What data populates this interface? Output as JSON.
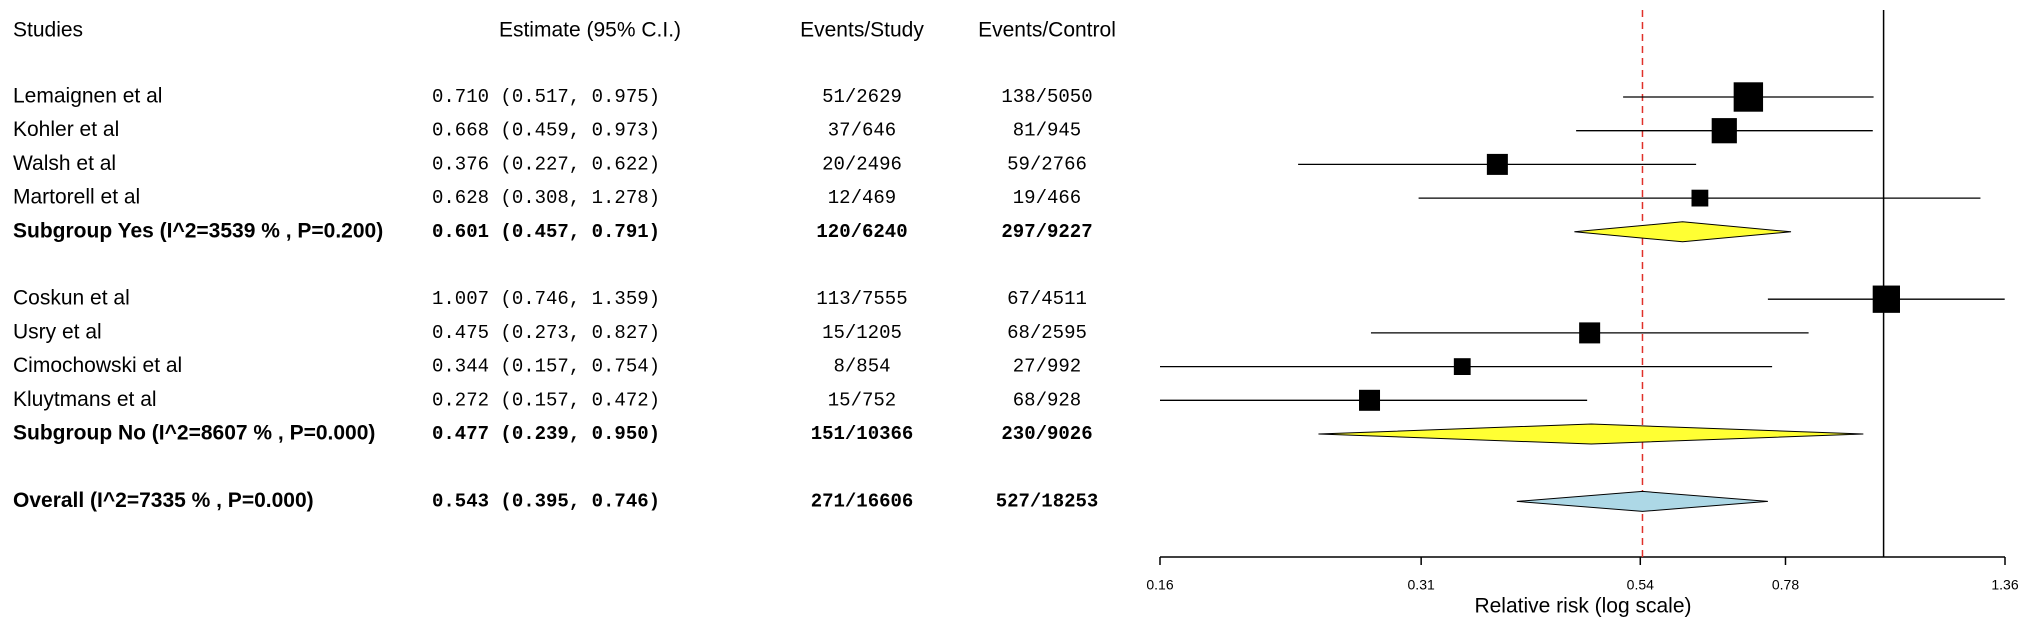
{
  "chart_data": {
    "type": "forest",
    "headers": {
      "study": "Studies",
      "estimate": "Estimate (95% C.I.)",
      "events_study": "Events/Study",
      "events_control": "Events/Control"
    },
    "x_label": "Relative risk (log scale)",
    "log_scale": true,
    "xlim": [
      0.16,
      1.36
    ],
    "xticks": [
      0.16,
      0.31,
      0.54,
      0.78,
      1.36
    ],
    "null_line": 1,
    "square_color": "#000000",
    "rows": [
      {
        "kind": "study",
        "study": "Lemaignen et al",
        "estimate": 0.71,
        "lower": 0.517,
        "upper": 0.975,
        "estimate_label": "0.710 (0.517, 0.975)",
        "events_study": "51/2629",
        "events_control": "138/5050",
        "weight": 14
      },
      {
        "kind": "study",
        "study": "Kohler et al",
        "estimate": 0.668,
        "lower": 0.459,
        "upper": 0.973,
        "estimate_label": "0.668 (0.459, 0.973)",
        "events_study": "37/646",
        "events_control": "81/945",
        "weight": 12
      },
      {
        "kind": "study",
        "study": "Walsh et al",
        "estimate": 0.376,
        "lower": 0.227,
        "upper": 0.622,
        "estimate_label": "0.376 (0.227, 0.622)",
        "events_study": "20/2496",
        "events_control": "59/2766",
        "weight": 10
      },
      {
        "kind": "study",
        "study": "Martorell et al",
        "estimate": 0.628,
        "lower": 0.308,
        "upper": 1.278,
        "estimate_label": "0.628 (0.308, 1.278)",
        "events_study": "12/469",
        "events_control": "19/466",
        "weight": 8
      },
      {
        "kind": "subgroup",
        "study": "Subgroup Yes (I^2=3539 % , P=0.200)",
        "estimate": 0.601,
        "lower": 0.457,
        "upper": 0.791,
        "estimate_label": "0.601 (0.457, 0.791)",
        "events_study": "120/6240",
        "events_control": "297/9227",
        "color": "#ffff33"
      },
      {
        "kind": "study",
        "study": "Coskun et al",
        "estimate": 1.007,
        "lower": 0.746,
        "upper": 1.359,
        "estimate_label": "1.007 (0.746, 1.359)",
        "events_study": "113/7555",
        "events_control": "67/4511",
        "weight": 13
      },
      {
        "kind": "study",
        "study": "Usry et al",
        "estimate": 0.475,
        "lower": 0.273,
        "upper": 0.827,
        "estimate_label": "0.475 (0.273, 0.827)",
        "events_study": "15/1205",
        "events_control": "68/2595",
        "weight": 10
      },
      {
        "kind": "study",
        "study": "Cimochowski et al",
        "estimate": 0.344,
        "lower": 0.157,
        "upper": 0.754,
        "estimate_label": "0.344 (0.157, 0.754)",
        "events_study": "8/854",
        "events_control": "27/992",
        "weight": 8
      },
      {
        "kind": "study",
        "study": "Kluytmans et al",
        "estimate": 0.272,
        "lower": 0.157,
        "upper": 0.472,
        "estimate_label": "0.272 (0.157, 0.472)",
        "events_study": "15/752",
        "events_control": "68/928",
        "weight": 10
      },
      {
        "kind": "subgroup",
        "study": "Subgroup No (I^2=8607 % , P=0.000)",
        "estimate": 0.477,
        "lower": 0.239,
        "upper": 0.95,
        "estimate_label": "0.477 (0.239, 0.950)",
        "events_study": "151/10366",
        "events_control": "230/9026",
        "color": "#ffff33"
      },
      {
        "kind": "overall",
        "study": "Overall (I^2=7335 % , P=0.000)",
        "estimate": 0.543,
        "lower": 0.395,
        "upper": 0.746,
        "estimate_label": "0.543 (0.395, 0.746)",
        "events_study": "271/16606",
        "events_control": "527/18253",
        "color": "#add8e6"
      }
    ]
  }
}
